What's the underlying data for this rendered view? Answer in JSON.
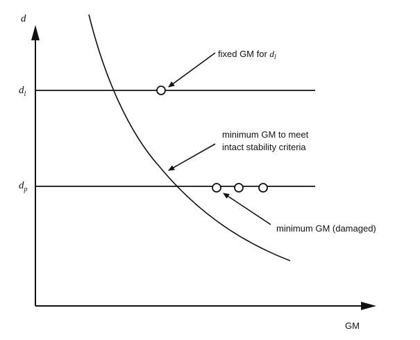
{
  "diagram": {
    "axes": {
      "y_label": "d",
      "x_label": "GM"
    },
    "levels": {
      "dl": {
        "symbol": "d",
        "sub": "l"
      },
      "dp": {
        "symbol": "d",
        "sub": "p"
      }
    },
    "annotations": {
      "fixed_gm": {
        "text": "fixed GM for ",
        "symbol": "d",
        "sub": "l"
      },
      "minimum_gm_intact_line1": "minimum GM to meet",
      "minimum_gm_intact_line2": "intact stability criteria",
      "minimum_gm_damaged": "minimum GM (damaged)"
    },
    "colors": {
      "ink": "#111111",
      "paper": "#ffffff"
    }
  }
}
